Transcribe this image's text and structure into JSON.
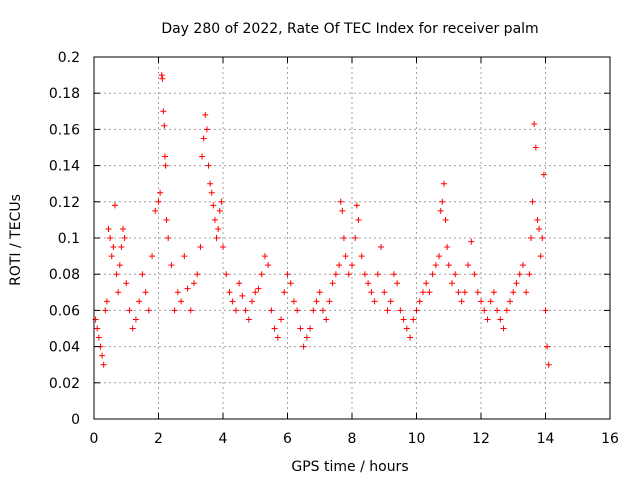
{
  "chart_data": {
    "type": "scatter",
    "title": "Day 280 of 2022, Rate Of TEC Index for receiver palm",
    "xlabel": "GPS time / hours",
    "ylabel": "ROTI / TECUs",
    "xlim": [
      0,
      16
    ],
    "ylim": [
      0,
      0.2
    ],
    "x_ticks": [
      0,
      2,
      4,
      6,
      8,
      10,
      12,
      14,
      16
    ],
    "y_ticks": [
      0,
      0.02,
      0.04,
      0.06,
      0.08,
      0.1,
      0.12,
      0.14,
      0.16,
      0.18,
      0.2
    ],
    "x_tick_labels": [
      "0",
      "2",
      "4",
      "6",
      "8",
      "10",
      "12",
      "14",
      "16"
    ],
    "y_tick_labels": [
      "0",
      "0.02",
      "0.04",
      "0.06",
      "0.08",
      "0.1",
      "0.12",
      "0.14",
      "0.16",
      "0.18",
      "0.2"
    ],
    "grid": true,
    "marker": "+",
    "series_color": "#ff0000",
    "series": [
      {
        "name": "ROTI",
        "points": [
          [
            0.05,
            0.055
          ],
          [
            0.1,
            0.05
          ],
          [
            0.15,
            0.045
          ],
          [
            0.2,
            0.04
          ],
          [
            0.25,
            0.035
          ],
          [
            0.3,
            0.03
          ],
          [
            0.35,
            0.06
          ],
          [
            0.4,
            0.065
          ],
          [
            0.45,
            0.105
          ],
          [
            0.5,
            0.1
          ],
          [
            0.55,
            0.09
          ],
          [
            0.6,
            0.095
          ],
          [
            0.65,
            0.118
          ],
          [
            0.7,
            0.08
          ],
          [
            0.75,
            0.07
          ],
          [
            0.8,
            0.085
          ],
          [
            0.85,
            0.095
          ],
          [
            0.9,
            0.105
          ],
          [
            0.95,
            0.1
          ],
          [
            1.0,
            0.075
          ],
          [
            1.1,
            0.06
          ],
          [
            1.2,
            0.05
          ],
          [
            1.3,
            0.055
          ],
          [
            1.4,
            0.065
          ],
          [
            1.5,
            0.08
          ],
          [
            1.6,
            0.07
          ],
          [
            1.7,
            0.06
          ],
          [
            1.8,
            0.09
          ],
          [
            1.9,
            0.115
          ],
          [
            2.0,
            0.12
          ],
          [
            2.05,
            0.125
          ],
          [
            2.1,
            0.19
          ],
          [
            2.12,
            0.188
          ],
          [
            2.15,
            0.17
          ],
          [
            2.18,
            0.162
          ],
          [
            2.2,
            0.145
          ],
          [
            2.22,
            0.14
          ],
          [
            2.25,
            0.11
          ],
          [
            2.3,
            0.1
          ],
          [
            2.4,
            0.085
          ],
          [
            2.5,
            0.06
          ],
          [
            2.6,
            0.07
          ],
          [
            2.7,
            0.065
          ],
          [
            2.8,
            0.09
          ],
          [
            2.9,
            0.072
          ],
          [
            3.0,
            0.06
          ],
          [
            3.1,
            0.075
          ],
          [
            3.2,
            0.08
          ],
          [
            3.3,
            0.095
          ],
          [
            3.35,
            0.145
          ],
          [
            3.4,
            0.155
          ],
          [
            3.45,
            0.168
          ],
          [
            3.5,
            0.16
          ],
          [
            3.55,
            0.14
          ],
          [
            3.6,
            0.13
          ],
          [
            3.65,
            0.125
          ],
          [
            3.7,
            0.118
          ],
          [
            3.75,
            0.11
          ],
          [
            3.8,
            0.1
          ],
          [
            3.85,
            0.105
          ],
          [
            3.9,
            0.115
          ],
          [
            3.95,
            0.12
          ],
          [
            4.0,
            0.095
          ],
          [
            4.1,
            0.08
          ],
          [
            4.2,
            0.07
          ],
          [
            4.3,
            0.065
          ],
          [
            4.4,
            0.06
          ],
          [
            4.5,
            0.075
          ],
          [
            4.6,
            0.068
          ],
          [
            4.7,
            0.06
          ],
          [
            4.8,
            0.055
          ],
          [
            4.9,
            0.065
          ],
          [
            5.0,
            0.07
          ],
          [
            5.1,
            0.072
          ],
          [
            5.2,
            0.08
          ],
          [
            5.3,
            0.09
          ],
          [
            5.4,
            0.085
          ],
          [
            5.5,
            0.06
          ],
          [
            5.6,
            0.05
          ],
          [
            5.7,
            0.045
          ],
          [
            5.8,
            0.055
          ],
          [
            5.9,
            0.07
          ],
          [
            6.0,
            0.08
          ],
          [
            6.1,
            0.075
          ],
          [
            6.2,
            0.065
          ],
          [
            6.3,
            0.06
          ],
          [
            6.4,
            0.05
          ],
          [
            6.5,
            0.04
          ],
          [
            6.6,
            0.045
          ],
          [
            6.7,
            0.05
          ],
          [
            6.8,
            0.06
          ],
          [
            6.9,
            0.065
          ],
          [
            7.0,
            0.07
          ],
          [
            7.1,
            0.06
          ],
          [
            7.2,
            0.055
          ],
          [
            7.3,
            0.065
          ],
          [
            7.4,
            0.075
          ],
          [
            7.5,
            0.08
          ],
          [
            7.6,
            0.085
          ],
          [
            7.65,
            0.12
          ],
          [
            7.7,
            0.115
          ],
          [
            7.75,
            0.1
          ],
          [
            7.8,
            0.09
          ],
          [
            7.9,
            0.08
          ],
          [
            8.0,
            0.085
          ],
          [
            8.1,
            0.1
          ],
          [
            8.15,
            0.118
          ],
          [
            8.2,
            0.11
          ],
          [
            8.3,
            0.09
          ],
          [
            8.4,
            0.08
          ],
          [
            8.5,
            0.075
          ],
          [
            8.6,
            0.07
          ],
          [
            8.7,
            0.065
          ],
          [
            8.8,
            0.08
          ],
          [
            8.9,
            0.095
          ],
          [
            9.0,
            0.07
          ],
          [
            9.1,
            0.06
          ],
          [
            9.2,
            0.065
          ],
          [
            9.3,
            0.08
          ],
          [
            9.4,
            0.075
          ],
          [
            9.5,
            0.06
          ],
          [
            9.6,
            0.055
          ],
          [
            9.7,
            0.05
          ],
          [
            9.8,
            0.045
          ],
          [
            9.9,
            0.055
          ],
          [
            10.0,
            0.06
          ],
          [
            10.1,
            0.065
          ],
          [
            10.2,
            0.07
          ],
          [
            10.3,
            0.075
          ],
          [
            10.4,
            0.07
          ],
          [
            10.5,
            0.08
          ],
          [
            10.6,
            0.085
          ],
          [
            10.7,
            0.09
          ],
          [
            10.75,
            0.115
          ],
          [
            10.8,
            0.12
          ],
          [
            10.85,
            0.13
          ],
          [
            10.9,
            0.11
          ],
          [
            10.95,
            0.095
          ],
          [
            11.0,
            0.085
          ],
          [
            11.1,
            0.075
          ],
          [
            11.2,
            0.08
          ],
          [
            11.3,
            0.07
          ],
          [
            11.4,
            0.065
          ],
          [
            11.5,
            0.07
          ],
          [
            11.6,
            0.085
          ],
          [
            11.7,
            0.098
          ],
          [
            11.8,
            0.08
          ],
          [
            11.9,
            0.07
          ],
          [
            12.0,
            0.065
          ],
          [
            12.1,
            0.06
          ],
          [
            12.2,
            0.055
          ],
          [
            12.3,
            0.065
          ],
          [
            12.4,
            0.07
          ],
          [
            12.5,
            0.06
          ],
          [
            12.6,
            0.055
          ],
          [
            12.7,
            0.05
          ],
          [
            12.8,
            0.06
          ],
          [
            12.9,
            0.065
          ],
          [
            13.0,
            0.07
          ],
          [
            13.1,
            0.075
          ],
          [
            13.2,
            0.08
          ],
          [
            13.3,
            0.085
          ],
          [
            13.4,
            0.07
          ],
          [
            13.5,
            0.08
          ],
          [
            13.55,
            0.1
          ],
          [
            13.6,
            0.12
          ],
          [
            13.65,
            0.163
          ],
          [
            13.7,
            0.15
          ],
          [
            13.75,
            0.11
          ],
          [
            13.8,
            0.105
          ],
          [
            13.85,
            0.09
          ],
          [
            13.9,
            0.1
          ],
          [
            13.95,
            0.135
          ],
          [
            14.0,
            0.06
          ],
          [
            14.05,
            0.04
          ],
          [
            14.1,
            0.03
          ]
        ]
      }
    ]
  }
}
